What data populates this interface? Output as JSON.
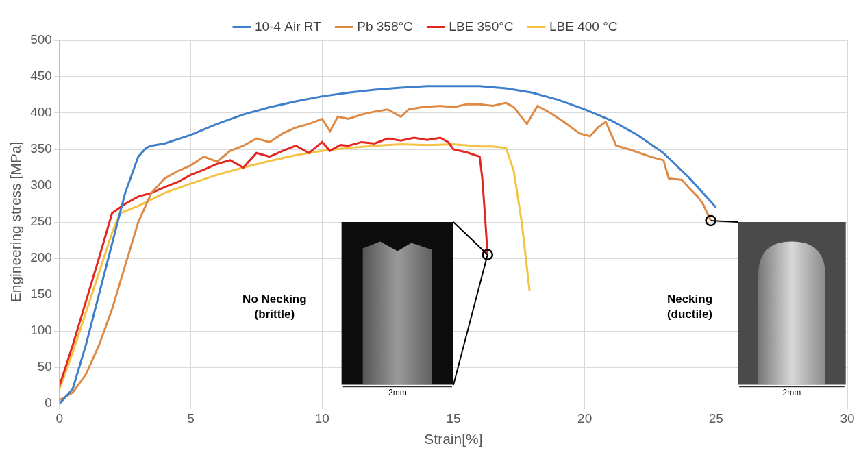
{
  "chart_data": {
    "type": "line",
    "x_label": "Strain[%]",
    "y_label": "Engineering stress [MPa]",
    "xlim": [
      0,
      30
    ],
    "xticks": [
      0,
      5,
      10,
      15,
      20,
      25,
      30
    ],
    "ylim": [
      0,
      500
    ],
    "yticks": [
      0,
      50,
      100,
      150,
      200,
      250,
      300,
      350,
      400,
      450,
      500
    ],
    "grid": true,
    "legend": "top",
    "series": [
      {
        "name": "10-4 Air RT",
        "color": "#3d7fca",
        "x": [
          0,
          0.5,
          1,
          1.5,
          2,
          2.5,
          3,
          3.3,
          3.5,
          4,
          5,
          6,
          7,
          8,
          9,
          10,
          11,
          12,
          13,
          14,
          15,
          16,
          17,
          18,
          19,
          20,
          21,
          22,
          23,
          24,
          25
        ],
        "values": [
          0,
          20,
          80,
          150,
          220,
          290,
          340,
          352,
          355,
          358,
          370,
          385,
          398,
          408,
          416,
          423,
          428,
          432,
          435,
          437,
          437,
          437,
          434,
          428,
          418,
          405,
          390,
          370,
          345,
          310,
          270
        ]
      },
      {
        "name": "Pb 358°C",
        "color": "#de8a45",
        "x": [
          0,
          0.5,
          1,
          1.5,
          2,
          2.5,
          3,
          3.5,
          4,
          4.5,
          5,
          5.5,
          6,
          6.5,
          7,
          7.5,
          8,
          8.5,
          9,
          9.5,
          10,
          10.3,
          10.6,
          11,
          11.5,
          12,
          12.5,
          13,
          13.3,
          13.8,
          14.5,
          15,
          15.5,
          16,
          16.5,
          17,
          17.3,
          17.8,
          18.2,
          18.7,
          19.2,
          19.8,
          20.2,
          20.5,
          20.8,
          21.2,
          21.7,
          22.5,
          23,
          23.2,
          23.7,
          24,
          24.3,
          24.5,
          24.8
        ],
        "values": [
          5,
          15,
          40,
          80,
          130,
          190,
          250,
          290,
          310,
          320,
          328,
          340,
          333,
          348,
          355,
          365,
          360,
          372,
          380,
          385,
          392,
          375,
          395,
          392,
          398,
          402,
          405,
          395,
          405,
          408,
          410,
          408,
          412,
          412,
          410,
          414,
          408,
          385,
          410,
          400,
          388,
          372,
          368,
          380,
          388,
          355,
          350,
          340,
          335,
          310,
          308,
          296,
          285,
          275,
          252
        ]
      },
      {
        "name": "LBE 350°C",
        "color": "#e3261f",
        "x": [
          0,
          0.5,
          1,
          1.5,
          2,
          2.5,
          3,
          3.5,
          4,
          4.5,
          5,
          5.5,
          6,
          6.5,
          7,
          7.5,
          8,
          8.5,
          9,
          9.5,
          10,
          10.3,
          10.7,
          11,
          11.5,
          12,
          12.5,
          13,
          13.5,
          14,
          14.5,
          14.8,
          15,
          15.5,
          16,
          16.1,
          16.2,
          16.3
        ],
        "values": [
          25,
          80,
          140,
          200,
          262,
          275,
          285,
          290,
          298,
          305,
          315,
          322,
          330,
          335,
          325,
          345,
          340,
          348,
          355,
          345,
          360,
          348,
          356,
          355,
          360,
          358,
          365,
          362,
          366,
          363,
          366,
          360,
          350,
          346,
          340,
          310,
          260,
          205
        ]
      },
      {
        "name": "LBE 400 °C",
        "color": "#f5c242",
        "x": [
          0,
          0.5,
          1,
          1.5,
          2,
          2.3,
          3,
          4,
          5,
          6,
          7,
          8,
          9,
          10,
          11,
          12,
          13,
          14,
          15,
          16,
          16.5,
          17,
          17.3,
          17.6,
          17.9
        ],
        "values": [
          20,
          70,
          125,
          180,
          235,
          262,
          272,
          290,
          303,
          315,
          325,
          334,
          342,
          348,
          352,
          355,
          357,
          356,
          357,
          354,
          354,
          352,
          320,
          250,
          155
        ]
      }
    ],
    "insets": [
      {
        "label": "No Necking (brittle)",
        "scale": "2mm",
        "x": 16.3,
        "y": 205
      },
      {
        "label": "Necking (ductile)",
        "scale": "2mm",
        "x": 24.8,
        "y": 252
      }
    ]
  }
}
